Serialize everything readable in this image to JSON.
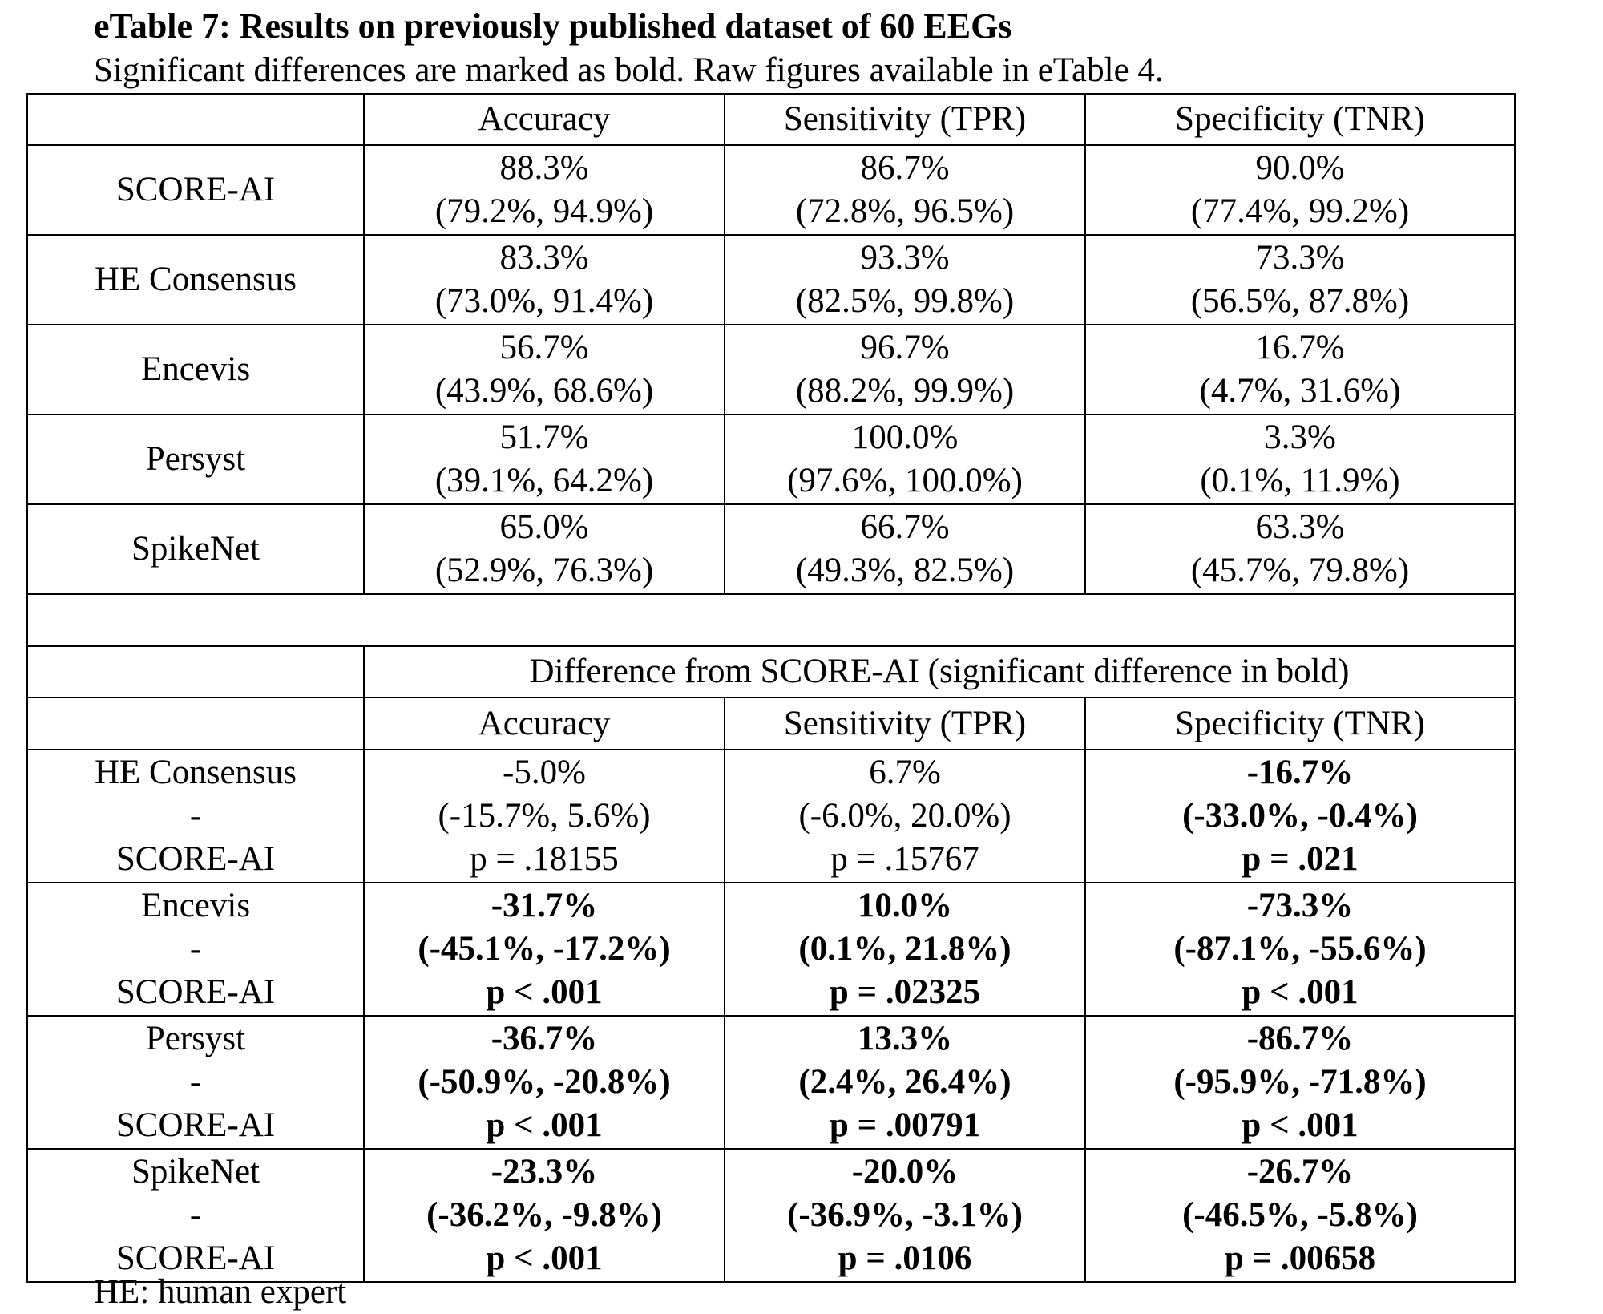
{
  "title": "eTable 7:  Results on previously published dataset of 60 EEGs",
  "subtitle": "Significant differences are marked as bold. Raw figures available in eTable 4.",
  "footnote": "HE: human expert",
  "columns": [
    "Accuracy",
    "Sensitivity (TPR)",
    "Specificity (TNR)"
  ],
  "results": [
    {
      "method": "SCORE-AI",
      "cells": [
        {
          "value": "88.3%",
          "ci": "(79.2%, 94.9%)"
        },
        {
          "value": "86.7%",
          "ci": "(72.8%, 96.5%)"
        },
        {
          "value": "90.0%",
          "ci": "(77.4%, 99.2%)"
        }
      ]
    },
    {
      "method": "HE Consensus",
      "cells": [
        {
          "value": "83.3%",
          "ci": "(73.0%, 91.4%)"
        },
        {
          "value": "93.3%",
          "ci": "(82.5%, 99.8%)"
        },
        {
          "value": "73.3%",
          "ci": "(56.5%, 87.8%)"
        }
      ]
    },
    {
      "method": "Encevis",
      "cells": [
        {
          "value": "56.7%",
          "ci": "(43.9%, 68.6%)"
        },
        {
          "value": "96.7%",
          "ci": "(88.2%, 99.9%)"
        },
        {
          "value": "16.7%",
          "ci": "(4.7%, 31.6%)"
        }
      ]
    },
    {
      "method": "Persyst",
      "cells": [
        {
          "value": "51.7%",
          "ci": "(39.1%, 64.2%)"
        },
        {
          "value": "100.0%",
          "ci": "(97.6%, 100.0%)"
        },
        {
          "value": "3.3%",
          "ci": "(0.1%, 11.9%)"
        }
      ]
    },
    {
      "method": "SpikeNet",
      "cells": [
        {
          "value": "65.0%",
          "ci": "(52.9%, 76.3%)"
        },
        {
          "value": "66.7%",
          "ci": "(49.3%, 82.5%)"
        },
        {
          "value": "63.3%",
          "ci": "(45.7%, 79.8%)"
        }
      ]
    }
  ],
  "difference_title": "Difference from SCORE-AI (significant difference in bold)",
  "differences": [
    {
      "method": "HE Consensus",
      "dash": "-",
      "reference": "SCORE-AI",
      "cells": [
        {
          "value": "-5.0%",
          "ci": "(-15.7%, 5.6%)",
          "p": "p = .18155",
          "significant": false
        },
        {
          "value": "6.7%",
          "ci": "(-6.0%, 20.0%)",
          "p": "p = .15767",
          "significant": false
        },
        {
          "value": "-16.7%",
          "ci": "(-33.0%, -0.4%)",
          "p": "p = .021",
          "significant": true
        }
      ]
    },
    {
      "method": "Encevis",
      "dash": "-",
      "reference": "SCORE-AI",
      "cells": [
        {
          "value": "-31.7%",
          "ci": "(-45.1%, -17.2%)",
          "p": "p < .001",
          "significant": true
        },
        {
          "value": "10.0%",
          "ci": "(0.1%, 21.8%)",
          "p": "p = .02325",
          "significant": true
        },
        {
          "value": "-73.3%",
          "ci": "(-87.1%, -55.6%)",
          "p": "p < .001",
          "significant": true
        }
      ]
    },
    {
      "method": "Persyst",
      "dash": "-",
      "reference": "SCORE-AI",
      "cells": [
        {
          "value": "-36.7%",
          "ci": "(-50.9%, -20.8%)",
          "p": "p < .001",
          "significant": true
        },
        {
          "value": "13.3%",
          "ci": "(2.4%, 26.4%)",
          "p": "p = .00791",
          "significant": true
        },
        {
          "value": "-86.7%",
          "ci": "(-95.9%, -71.8%)",
          "p": "p < .001",
          "significant": true
        }
      ]
    },
    {
      "method": "SpikeNet",
      "dash": "-",
      "reference": "SCORE-AI",
      "cells": [
        {
          "value": "-23.3%",
          "ci": "(-36.2%, -9.8%)",
          "p": "p < .001",
          "significant": true
        },
        {
          "value": "-20.0%",
          "ci": "(-36.9%, -3.1%)",
          "p": "p = .0106",
          "significant": true
        },
        {
          "value": "-26.7%",
          "ci": "(-46.5%, -5.8%)",
          "p": "p = .00658",
          "significant": true
        }
      ]
    }
  ]
}
